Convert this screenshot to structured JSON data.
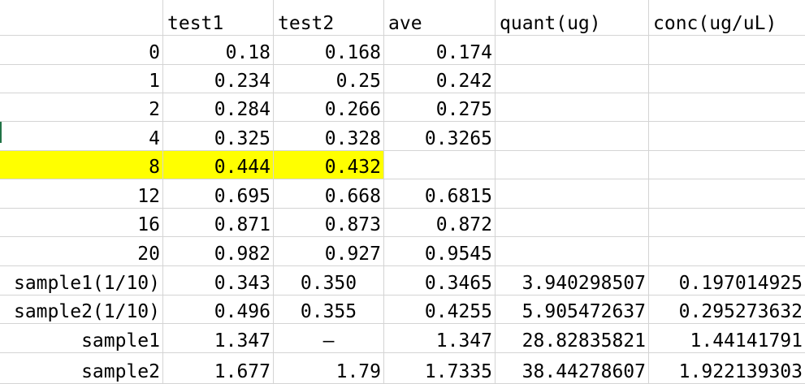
{
  "header": [
    "",
    "test1",
    "test2",
    "ave",
    "quant(ug)",
    "conc(ug/uL)"
  ],
  "rows": [
    {
      "label": "0",
      "test1": "0.18",
      "test2": "0.168",
      "ave": "0.174",
      "quant": "",
      "conc": "",
      "highlight": false
    },
    {
      "label": "1",
      "test1": "0.234",
      "test2": "0.25",
      "ave": "0.242",
      "quant": "",
      "conc": "",
      "highlight": false
    },
    {
      "label": "2",
      "test1": "0.284",
      "test2": "0.266",
      "ave": "0.275",
      "quant": "",
      "conc": "",
      "highlight": false
    },
    {
      "label": "4",
      "test1": "0.325",
      "test2": "0.328",
      "ave": "0.3265",
      "quant": "",
      "conc": "",
      "highlight": false
    },
    {
      "label": "8",
      "test1": "0.444",
      "test2": "0.432",
      "ave": "",
      "quant": "",
      "conc": "",
      "highlight": true
    },
    {
      "label": "12",
      "test1": "0.695",
      "test2": "0.668",
      "ave": "0.6815",
      "quant": "",
      "conc": "",
      "highlight": false
    },
    {
      "label": "16",
      "test1": "0.871",
      "test2": "0.873",
      "ave": "0.872",
      "quant": "",
      "conc": "",
      "highlight": false
    },
    {
      "label": "20",
      "test1": "0.982",
      "test2": "0.927",
      "ave": "0.9545",
      "quant": "",
      "conc": "",
      "highlight": false
    },
    {
      "label": "sample1(1/10)",
      "test1": "0.343",
      "test2": "0.350",
      "ave": "0.3465",
      "quant": "3.940298507",
      "conc": "0.197014925",
      "highlight": false
    },
    {
      "label": "sample2(1/10)",
      "test1": "0.496",
      "test2": "0.355",
      "ave": "0.4255",
      "quant": "5.905472637",
      "conc": "0.295273632",
      "highlight": false
    },
    {
      "label": "sample1",
      "test1": "1.347",
      "test2": "—",
      "ave": "1.347",
      "quant": "28.82835821",
      "conc": "1.44141791",
      "highlight": false
    },
    {
      "label": "sample2",
      "test1": "1.677",
      "test2": "1.79",
      "ave": "1.7335",
      "quant": "38.44278607",
      "conc": "1.922139303",
      "highlight": false
    }
  ],
  "colors": {
    "highlight": "#ffff00",
    "gridline": "#d4d4d4",
    "selection_marker": "#217346"
  }
}
